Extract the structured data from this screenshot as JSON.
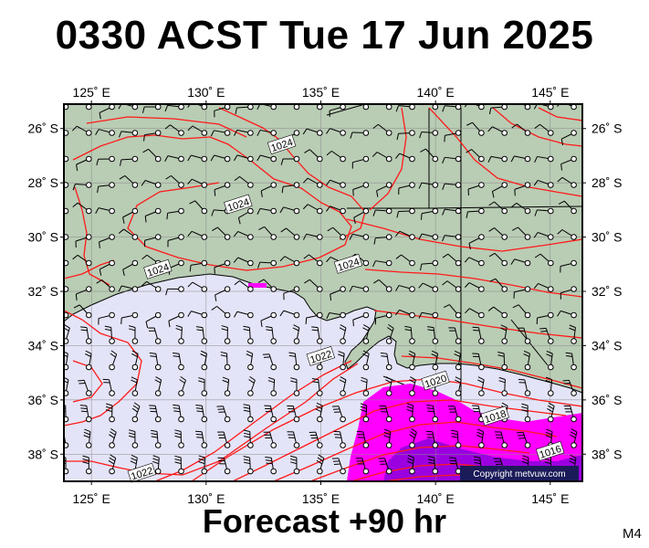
{
  "title": "0330 ACST Tue 17 Jun 2025",
  "forecast": "Forecast +90 hr",
  "model": "M4",
  "copyright": "Copyright metvuw.com",
  "axes": {
    "lon_labels": [
      "125˚ E",
      "130˚ E",
      "135˚ E",
      "140˚ E",
      "145˚ E"
    ],
    "lat_labels": [
      "26˚ S",
      "28˚ S",
      "30˚ S",
      "32˚ S",
      "34˚ S",
      "36˚ S",
      "38˚ S"
    ]
  },
  "isobar_labels": [
    {
      "text": "1024",
      "lon": 133.3,
      "lat": -26.6
    },
    {
      "text": "1024",
      "lon": 131.4,
      "lat": -28.8
    },
    {
      "text": "1024",
      "lon": 127.9,
      "lat": -31.2
    },
    {
      "text": "1024",
      "lon": 136.2,
      "lat": -31.0
    },
    {
      "text": "1022",
      "lon": 135.0,
      "lat": -34.4
    },
    {
      "text": "1020",
      "lon": 140.0,
      "lat": -35.3
    },
    {
      "text": "1018",
      "lon": 142.6,
      "lat": -36.6
    },
    {
      "text": "1016",
      "lon": 145.0,
      "lat": -37.9
    },
    {
      "text": "1022",
      "lon": 127.2,
      "lat": -38.7
    }
  ],
  "colors": {
    "land": "#b9ccb4",
    "sea": "#e4e4f8",
    "isobar": "#ff1a1a",
    "rain": "#ff00ff",
    "heavy_rain": "#9b00e0"
  }
}
